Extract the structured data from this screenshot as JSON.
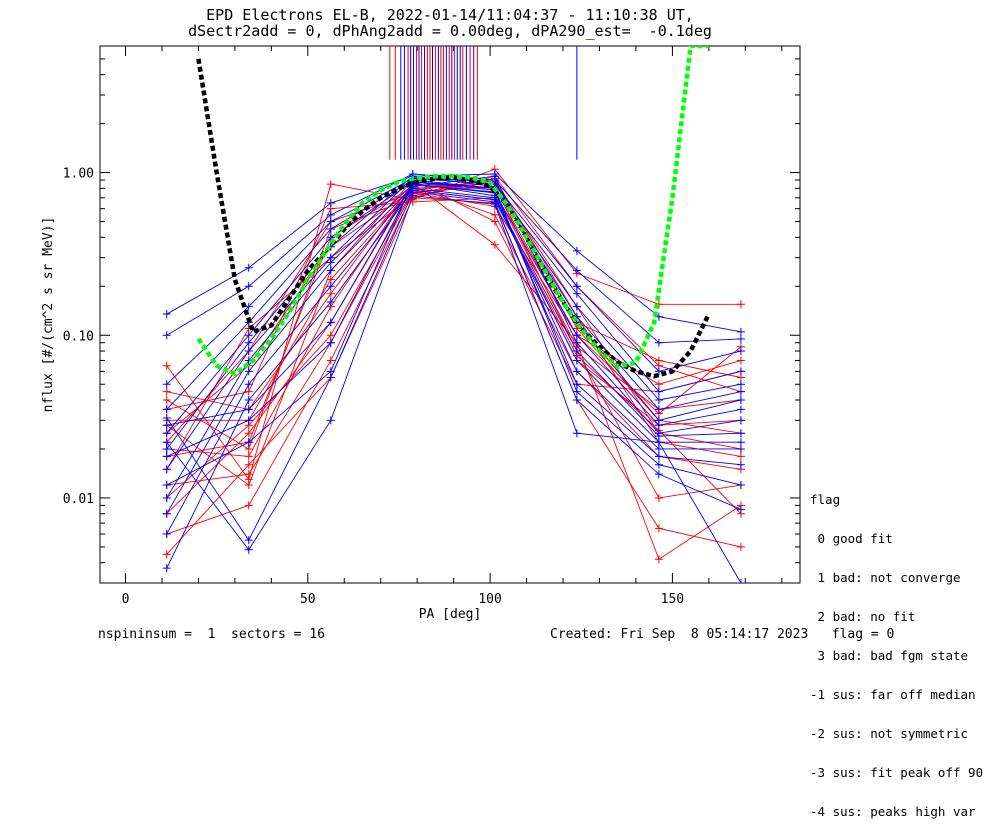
{
  "title": {
    "line1": "EPD Electrons EL-B, 2022-01-14/11:04:37 - 11:10:38 UT,",
    "line2": "dSectr2add = 0, dPhAng2add = 0.00deg, dPA290_est=  -0.1deg"
  },
  "footer": {
    "left": "nspininsum =  1  sectors = 16",
    "right": "Created: Fri Sep  8 05:14:17 2023   flag = 0"
  },
  "legend": {
    "title": "flag",
    "entries": [
      " 0 good fit",
      " 1 bad: not converge",
      " 2 bad: no fit",
      " 3 bad: bad fgm state",
      "-1 sus: far off median",
      "-2 sus: not symmetric",
      "-3 sus: fit peak off 90",
      "-4 sus: peaks high var"
    ]
  },
  "colors": {
    "red": "#ff0000",
    "blue": "#0000ff",
    "black_fit": "#000000",
    "green_fit": "#00ff00"
  },
  "chart_data": {
    "type": "line",
    "xlabel": "PA [deg]",
    "ylabel": "nflux [#/(cm^2 s sr MeV)]",
    "xlim": [
      -7,
      185
    ],
    "ylim": [
      0.003,
      6.0
    ],
    "yscale": "log",
    "xticks": [
      0,
      50,
      100,
      150
    ],
    "xtick_labels": [
      "0",
      "50",
      "100",
      "150"
    ],
    "yticks": [
      0.01,
      0.1,
      1.0
    ],
    "ytick_labels": [
      "0.01",
      "0.10",
      "1.00"
    ],
    "x": [
      11.3,
      33.8,
      56.3,
      78.8,
      101.3,
      123.8,
      146.3,
      168.8
    ],
    "red_curves": [
      [
        0.065,
        0.013,
        0.85,
        0.68,
        1.05,
        0.24,
        0.155,
        0.155
      ],
      [
        0.04,
        0.02,
        0.45,
        0.7,
        0.95,
        0.2,
        0.065,
        0.045
      ],
      [
        0.025,
        0.065,
        0.35,
        0.78,
        0.9,
        0.11,
        0.03,
        0.025
      ],
      [
        0.015,
        0.11,
        0.3,
        0.72,
        0.88,
        0.15,
        0.025,
        0.02
      ],
      [
        0.03,
        0.03,
        0.22,
        0.8,
        0.86,
        0.12,
        0.07,
        0.055
      ],
      [
        0.02,
        0.018,
        0.15,
        0.84,
        0.8,
        0.1,
        0.05,
        0.07
      ],
      [
        0.008,
        0.025,
        0.12,
        0.88,
        0.75,
        0.085,
        0.035,
        0.04
      ],
      [
        0.012,
        0.014,
        0.09,
        0.76,
        0.82,
        0.08,
        0.01,
        0.012
      ],
      [
        0.035,
        0.045,
        0.6,
        0.66,
        0.7,
        0.07,
        0.028,
        0.03
      ],
      [
        0.006,
        0.009,
        0.07,
        0.74,
        0.92,
        0.13,
        0.022,
        0.018
      ],
      [
        0.018,
        0.022,
        0.4,
        0.82,
        0.55,
        0.06,
        0.018,
        0.015
      ],
      [
        0.028,
        0.012,
        0.25,
        0.9,
        0.5,
        0.05,
        0.045,
        0.06
      ],
      [
        0.0045,
        0.016,
        0.055,
        0.7,
        0.65,
        0.04,
        0.0065,
        0.005
      ],
      [
        0.045,
        0.035,
        0.18,
        0.86,
        0.36,
        0.09,
        0.0042,
        0.009
      ],
      [
        0.022,
        0.08,
        0.5,
        0.75,
        0.62,
        0.1,
        0.033,
        0.085
      ],
      [
        0.01,
        0.028,
        0.1,
        0.78,
        0.68,
        0.075,
        0.026,
        0.008
      ]
    ],
    "blue_curves": [
      [
        0.135,
        0.26,
        0.65,
        0.95,
        0.98,
        0.33,
        0.13,
        0.105
      ],
      [
        0.1,
        0.2,
        0.55,
        0.98,
        0.9,
        0.25,
        0.09,
        0.095
      ],
      [
        0.05,
        0.15,
        0.5,
        0.92,
        0.85,
        0.2,
        0.06,
        0.08
      ],
      [
        0.035,
        0.12,
        0.45,
        0.9,
        0.8,
        0.18,
        0.045,
        0.06
      ],
      [
        0.025,
        0.1,
        0.4,
        0.88,
        0.78,
        0.15,
        0.04,
        0.05
      ],
      [
        0.02,
        0.09,
        0.35,
        0.95,
        0.82,
        0.13,
        0.035,
        0.045
      ],
      [
        0.015,
        0.08,
        0.3,
        0.93,
        0.88,
        0.12,
        0.03,
        0.04
      ],
      [
        0.01,
        0.07,
        0.28,
        0.85,
        0.75,
        0.1,
        0.028,
        0.035
      ],
      [
        0.008,
        0.06,
        0.25,
        0.82,
        0.95,
        0.09,
        0.025,
        0.03
      ],
      [
        0.006,
        0.05,
        0.2,
        0.8,
        0.7,
        0.08,
        0.024,
        0.025
      ],
      [
        0.0037,
        0.04,
        0.16,
        0.78,
        0.68,
        0.07,
        0.022,
        0.022
      ],
      [
        0.028,
        0.035,
        0.12,
        0.86,
        0.72,
        0.06,
        0.02,
        0.02
      ],
      [
        0.018,
        0.03,
        0.09,
        0.84,
        0.76,
        0.05,
        0.018,
        0.016
      ],
      [
        0.012,
        0.022,
        0.06,
        0.88,
        0.8,
        0.045,
        0.016,
        0.012
      ],
      [
        0.031,
        0.0055,
        0.055,
        0.76,
        0.66,
        0.04,
        0.014,
        0.0085
      ],
      [
        0.022,
        0.0048,
        0.03,
        0.72,
        0.64,
        0.025,
        0.022,
        0.003
      ]
    ],
    "black_fit": {
      "x": [
        20,
        25,
        30,
        35,
        40,
        45,
        50,
        55,
        60,
        65,
        70,
        75,
        80,
        85,
        90,
        95,
        100,
        105,
        110,
        115,
        120,
        125,
        130,
        135,
        140,
        145,
        150,
        155,
        160
      ],
      "y": [
        5.0,
        1.0,
        0.22,
        0.105,
        0.115,
        0.17,
        0.25,
        0.33,
        0.45,
        0.58,
        0.7,
        0.8,
        0.88,
        0.92,
        0.93,
        0.9,
        0.82,
        0.62,
        0.4,
        0.24,
        0.16,
        0.11,
        0.085,
        0.068,
        0.06,
        0.056,
        0.06,
        0.08,
        0.135
      ]
    },
    "green_fit": {
      "x": [
        20,
        25,
        30,
        35,
        40,
        45,
        50,
        55,
        60,
        65,
        70,
        75,
        80,
        85,
        90,
        95,
        100,
        105,
        110,
        115,
        120,
        125,
        130,
        135,
        140,
        145,
        150,
        155,
        160
      ],
      "y": [
        0.095,
        0.065,
        0.058,
        0.07,
        0.095,
        0.14,
        0.22,
        0.33,
        0.48,
        0.65,
        0.78,
        0.88,
        0.93,
        0.95,
        0.95,
        0.93,
        0.87,
        0.62,
        0.4,
        0.25,
        0.16,
        0.11,
        0.08,
        0.064,
        0.068,
        0.12,
        0.7,
        6.0,
        6.0
      ]
    },
    "peak_markers": {
      "x": [
        72.5,
        74.0,
        75.5,
        76.5,
        77.5,
        78.2,
        79.0,
        79.8,
        80.5,
        81.2,
        82.0,
        82.8,
        83.5,
        84.2,
        85.0,
        85.8,
        86.5,
        87.2,
        88.0,
        88.8,
        89.5,
        90.2,
        91.0,
        91.8,
        92.5,
        93.5,
        94.5,
        95.5,
        96.5,
        123.8
      ],
      "colors": [
        "red",
        "red",
        "blue",
        "blue",
        "red",
        "blue",
        "blue",
        "red",
        "blue",
        "red",
        "blue",
        "red",
        "red",
        "blue",
        "red",
        "blue",
        "red",
        "red",
        "blue",
        "red",
        "blue",
        "red",
        "blue",
        "blue",
        "red",
        "blue",
        "red",
        "blue",
        "red",
        "blue"
      ]
    }
  }
}
